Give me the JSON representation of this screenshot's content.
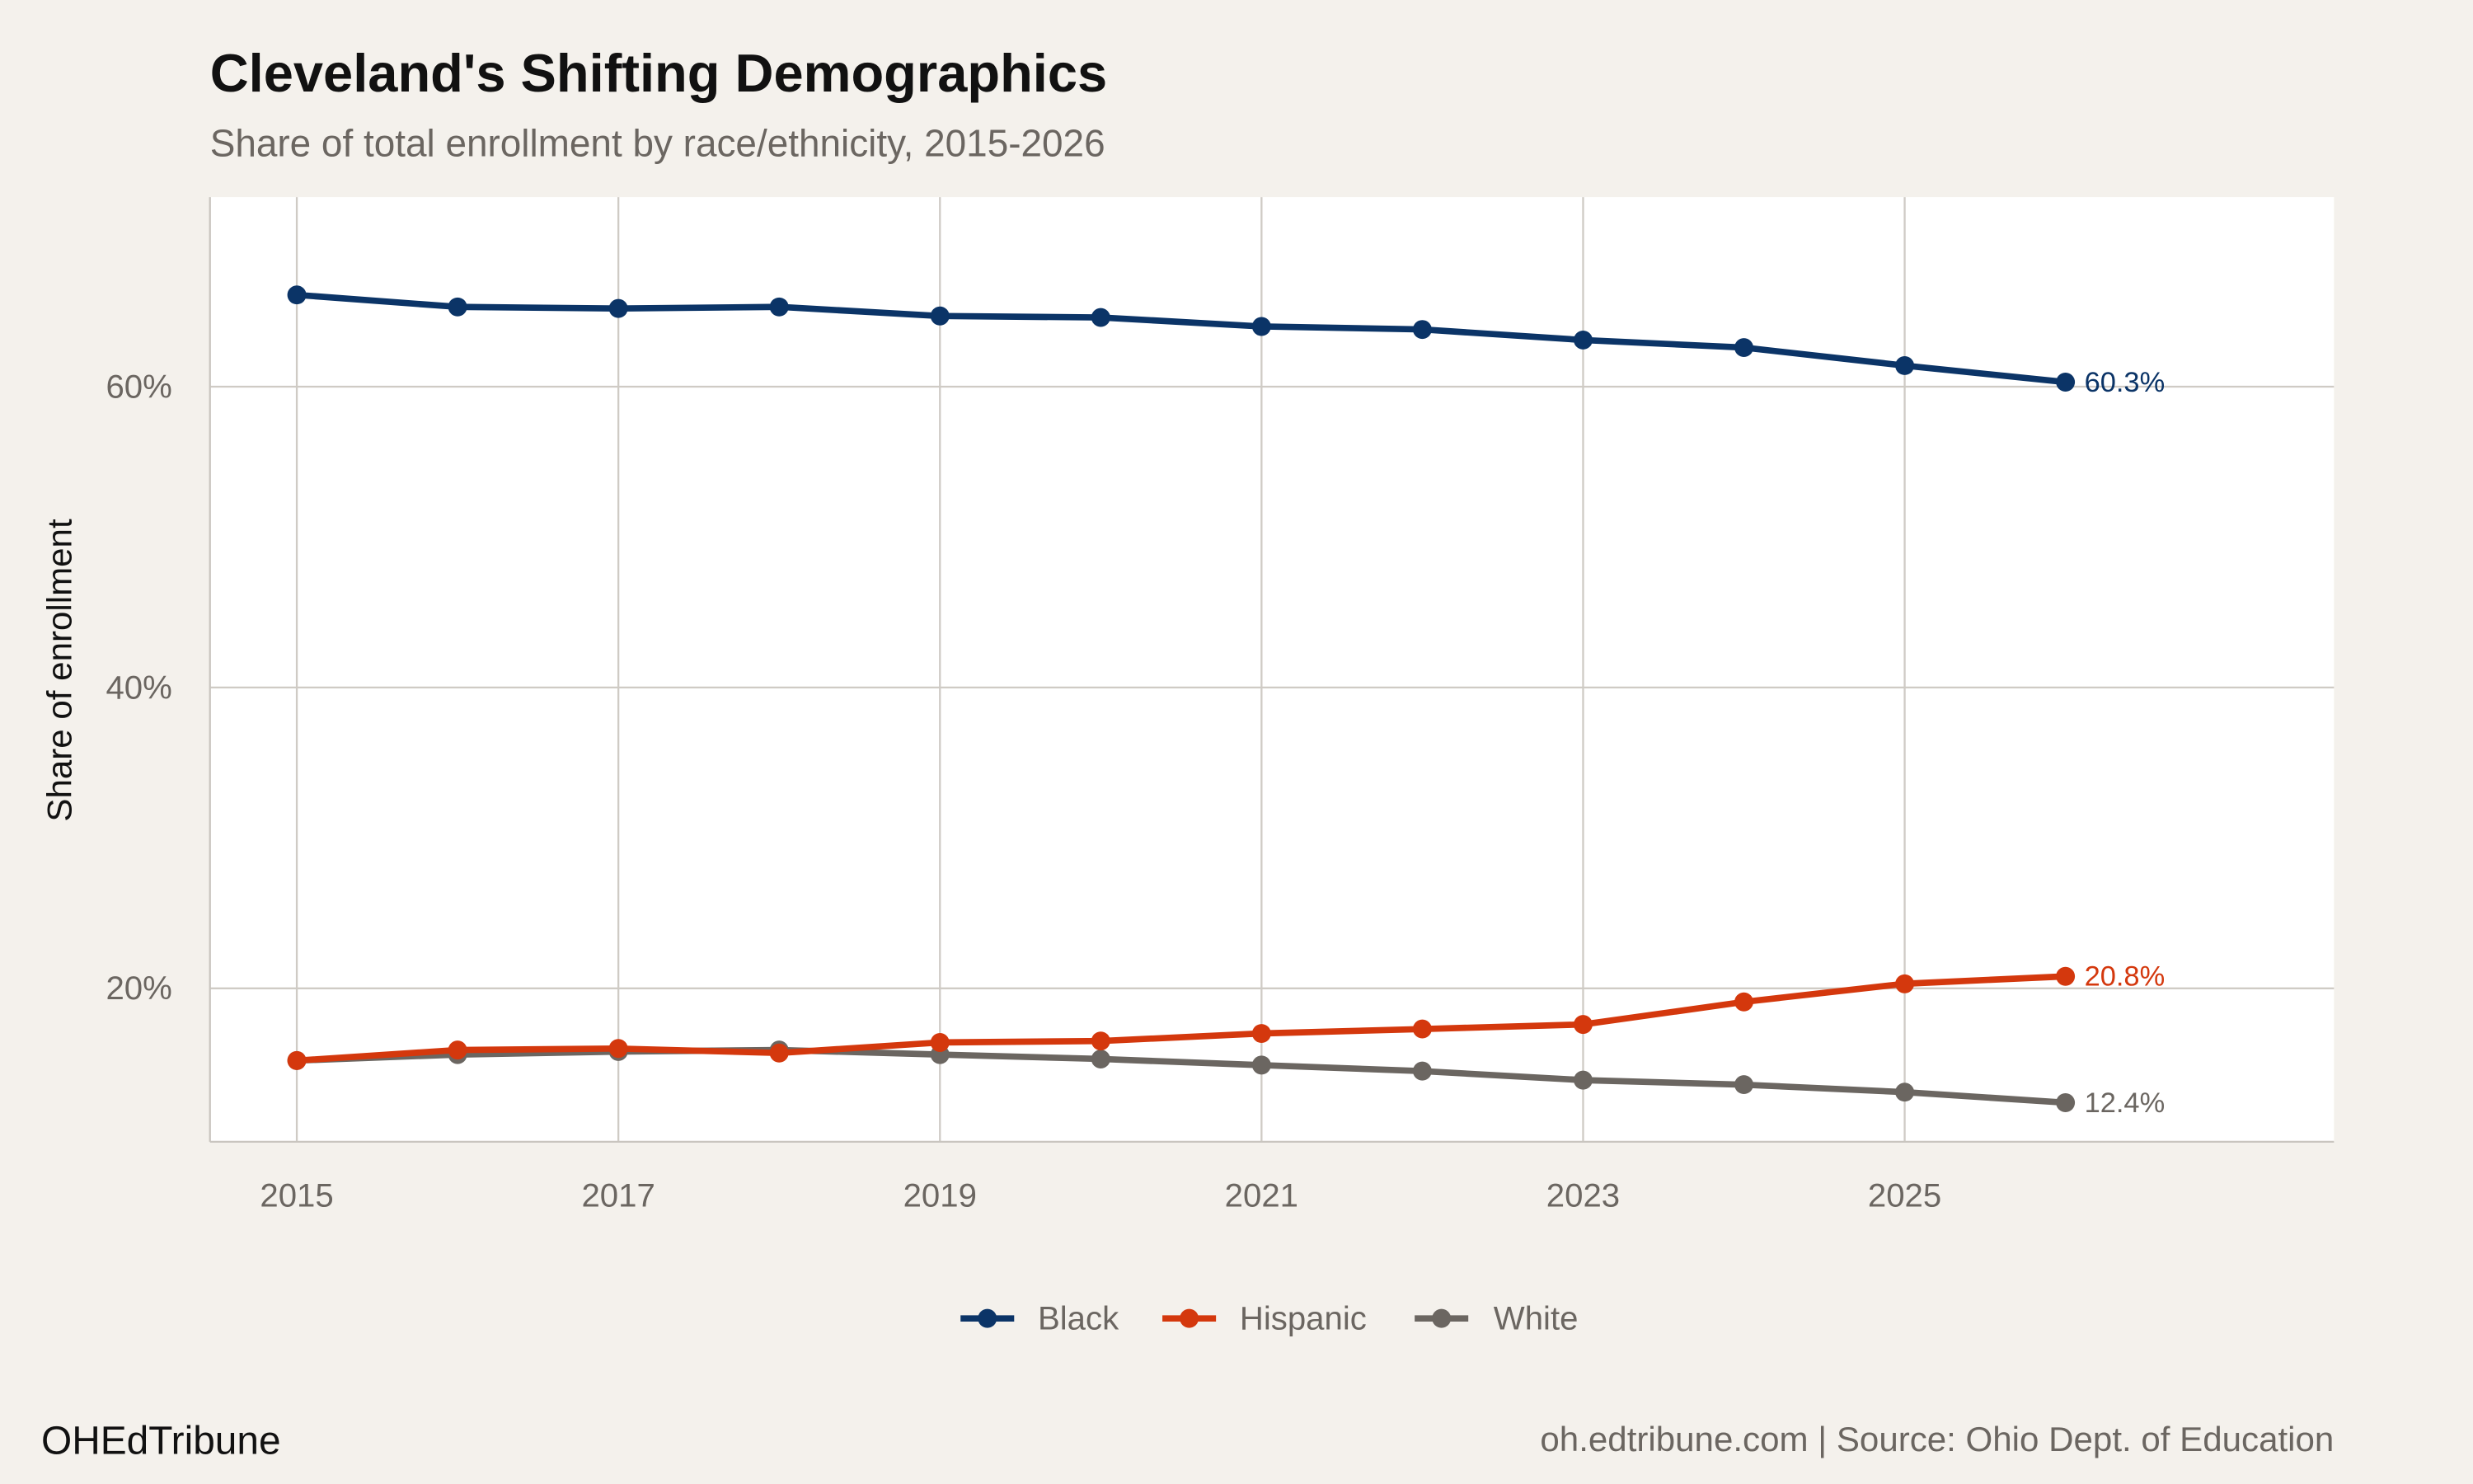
{
  "chart_data": {
    "type": "line",
    "title": "Cleveland's Shifting Demographics",
    "subtitle": "Share of total enrollment by race/ethnicity, 2015-2026",
    "xlabel": "",
    "ylabel": "Share of enrollment",
    "x": [
      2015,
      2016,
      2017,
      2018,
      2019,
      2020,
      2021,
      2022,
      2023,
      2024,
      2025,
      2026
    ],
    "xlim": [
      2014.46,
      2027.67
    ],
    "ylim": [
      9.8,
      72.6
    ],
    "x_ticks": [
      "2015",
      "2017",
      "2019",
      "2021",
      "2023",
      "2025"
    ],
    "y_ticks": [
      "20%",
      "40%",
      "60%"
    ],
    "grid": true,
    "legend_position": "bottom",
    "series": [
      {
        "name": "Black",
        "color": "#0B3467",
        "values": [
          66.1,
          65.3,
          65.2,
          65.3,
          64.7,
          64.6,
          64.0,
          63.8,
          63.1,
          62.6,
          61.4,
          60.3
        ],
        "end_label": "60.3%"
      },
      {
        "name": "Hispanic",
        "color": "#D4380D",
        "values": [
          15.2,
          15.9,
          16.0,
          15.7,
          16.4,
          16.5,
          17.0,
          17.3,
          17.6,
          19.1,
          20.3,
          20.8
        ],
        "end_label": "20.8%"
      },
      {
        "name": "White",
        "color": "#6B6661",
        "values": [
          15.2,
          15.6,
          15.8,
          15.9,
          15.6,
          15.3,
          14.9,
          14.5,
          13.9,
          13.6,
          13.1,
          12.4
        ],
        "end_label": "12.4%"
      }
    ]
  },
  "footer": {
    "brand": "OHEdTribune",
    "source": "oh.edtribune.com | Source: Ohio Dept. of Education"
  }
}
